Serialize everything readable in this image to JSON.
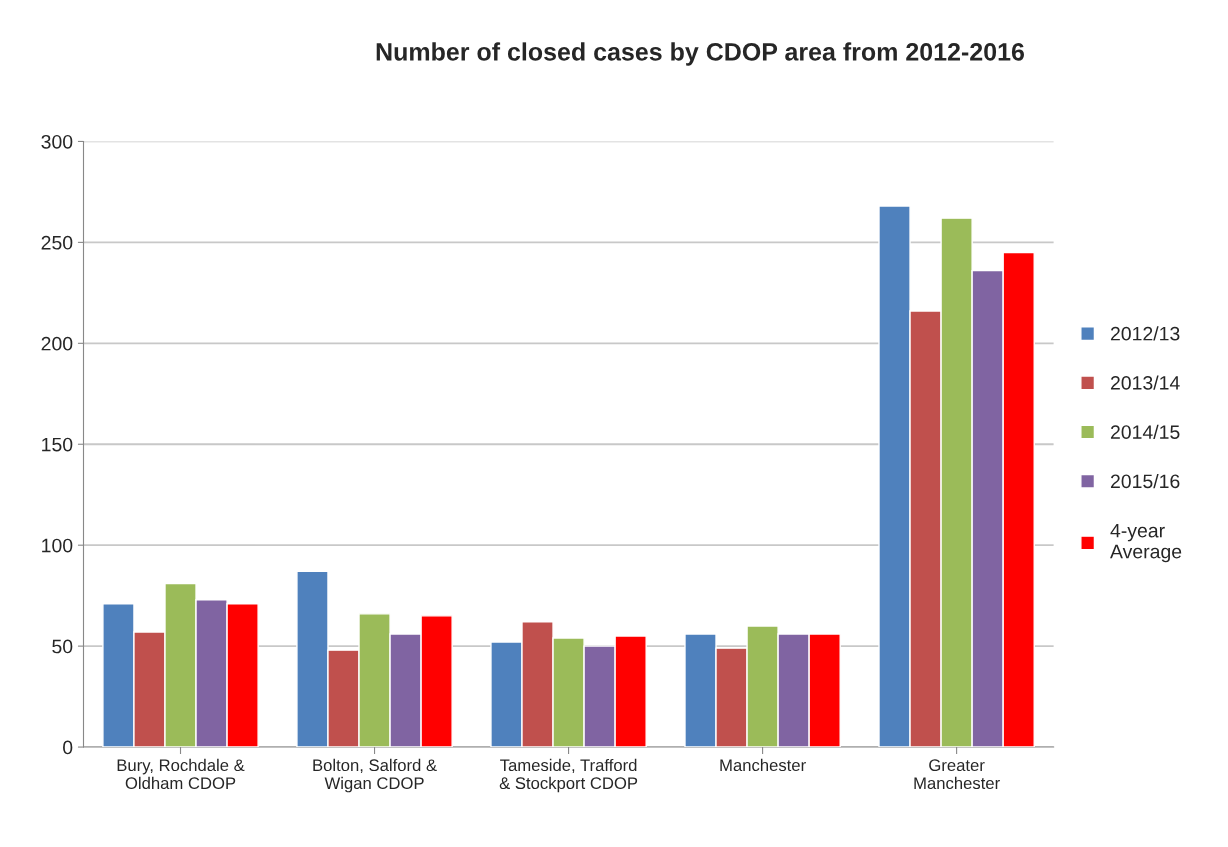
{
  "chart_data": {
    "type": "bar",
    "title": "Number of closed cases by CDOP area from 2012-2016",
    "categories": [
      "Bury, Rochdale &\nOldham CDOP",
      "Bolton, Salford &\nWigan CDOP",
      "Tameside, Trafford\n& Stockport CDOP",
      "Manchester",
      "Greater\nManchester"
    ],
    "series": [
      {
        "name": "2012/13",
        "color": "#4f81bd",
        "values": [
          71,
          87,
          52,
          56,
          268
        ]
      },
      {
        "name": "2013/14",
        "color": "#c0504d",
        "values": [
          57,
          48,
          62,
          49,
          216
        ]
      },
      {
        "name": "2014/15",
        "color": "#9bbb59",
        "values": [
          81,
          66,
          54,
          60,
          262
        ]
      },
      {
        "name": "2015/16",
        "color": "#8064a2",
        "values": [
          73,
          56,
          50,
          56,
          236
        ]
      },
      {
        "name": "4-year\nAverage",
        "color": "#ff0000",
        "values": [
          71,
          65,
          55,
          56,
          245
        ]
      }
    ],
    "ylim": [
      0,
      300
    ],
    "yticks": [
      0,
      50,
      100,
      150,
      200,
      250,
      300
    ],
    "grid": "y",
    "legend": "right"
  }
}
